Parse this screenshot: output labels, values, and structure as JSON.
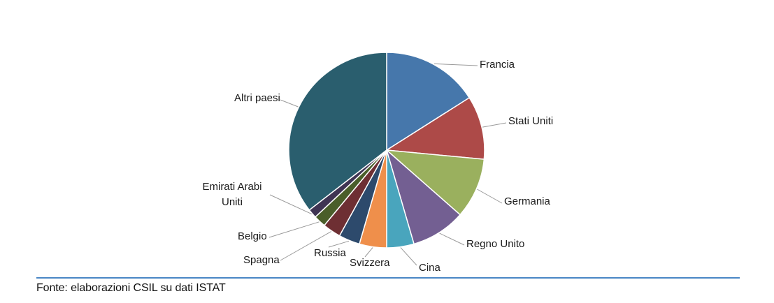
{
  "chart_data": {
    "type": "pie",
    "title": "",
    "start": "12 o'clock",
    "direction": "clockwise",
    "unit": "percent",
    "slices": [
      {
        "label": "Francia",
        "value": 16.0,
        "color": "#4677ab"
      },
      {
        "label": "Stati Uniti",
        "value": 10.5,
        "color": "#ad4a48"
      },
      {
        "label": "Germania",
        "value": 10.0,
        "color": "#9ab05e"
      },
      {
        "label": "Regno Unito",
        "value": 9.0,
        "color": "#735f92"
      },
      {
        "label": "Cina",
        "value": 4.5,
        "color": "#49a5bd"
      },
      {
        "label": "Svizzera",
        "value": 4.5,
        "color": "#ef8f4b"
      },
      {
        "label": "Russia",
        "value": 3.5,
        "color": "#2d4a6c"
      },
      {
        "label": "Spagna",
        "value": 3.0,
        "color": "#6e2f33"
      },
      {
        "label": "Belgio",
        "value": 2.0,
        "color": "#4a5e2a"
      },
      {
        "label": "Emirati Arabi Uniti",
        "value": 1.5,
        "color": "#3f3453"
      },
      {
        "label": "Altri paesi",
        "value": 35.5,
        "color": "#2a5e6e"
      }
    ]
  },
  "source": "Fonte: elaborazioni CSIL su dati ISTAT"
}
